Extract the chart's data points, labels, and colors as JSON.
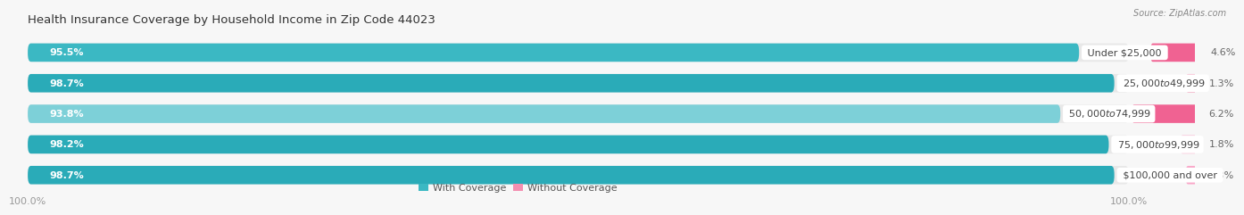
{
  "title": "Health Insurance Coverage by Household Income in Zip Code 44023",
  "source": "Source: ZipAtlas.com",
  "categories": [
    "Under $25,000",
    "$25,000 to $49,999",
    "$50,000 to $74,999",
    "$75,000 to $99,999",
    "$100,000 and over"
  ],
  "with_coverage": [
    95.5,
    98.7,
    93.8,
    98.2,
    98.7
  ],
  "without_coverage": [
    4.6,
    1.3,
    6.2,
    1.8,
    1.3
  ],
  "color_with": [
    "#3BB8C3",
    "#2AABB8",
    "#7DD0D8",
    "#2AABB8",
    "#2AABB8"
  ],
  "color_without": [
    "#F06292",
    "#F48FB1",
    "#F06292",
    "#F9A8C9",
    "#F9A8C9"
  ],
  "bar_bg_color": "#E8E8E8",
  "background_color": "#F7F7F7",
  "title_color": "#333333",
  "source_color": "#888888",
  "label_color_white": "#FFFFFF",
  "label_color_dark": "#555555",
  "tick_color": "#999999",
  "title_fontsize": 9.5,
  "label_fontsize": 8,
  "tick_fontsize": 8,
  "legend_fontsize": 8,
  "bar_height": 0.6,
  "total_width": 100,
  "xlim_max": 106
}
